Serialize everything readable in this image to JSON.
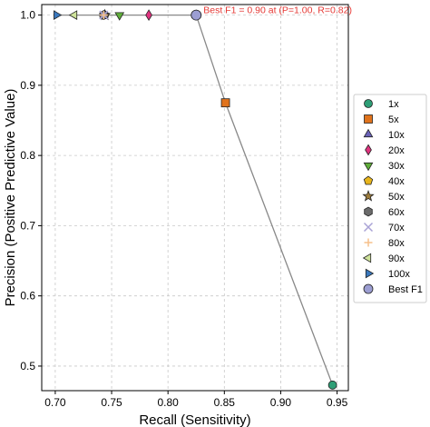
{
  "chart_data": {
    "type": "line",
    "xlabel": "Recall (Sensitivity)",
    "ylabel": "Precision (Positive Predictive Value)",
    "xlim": [
      0.688,
      0.96
    ],
    "ylim": [
      0.465,
      1.015
    ],
    "xticks": [
      0.7,
      0.75,
      0.8,
      0.85,
      0.9,
      0.95
    ],
    "yticks": [
      0.5,
      0.6,
      0.7,
      0.8,
      0.9,
      1.0
    ],
    "xtick_labels": [
      "0.70",
      "0.75",
      "0.80",
      "0.85",
      "0.90",
      "0.95"
    ],
    "ytick_labels": [
      "0.5",
      "0.6",
      "0.7",
      "0.8",
      "0.9",
      "1.0"
    ],
    "grid": true,
    "legend_position": "right",
    "curve": {
      "color": "#888888",
      "x": [
        0.701,
        0.717,
        0.743,
        0.744,
        0.757,
        0.783,
        0.825,
        0.851,
        0.946
      ],
      "y": [
        1.0,
        1.0,
        1.0,
        1.0,
        1.0,
        1.0,
        1.0,
        0.875,
        0.473
      ]
    },
    "series": [
      {
        "name": "1x",
        "marker": "circle",
        "color": "#2e9e76",
        "x": 0.946,
        "y": 0.473
      },
      {
        "name": "5x",
        "marker": "square",
        "color": "#e0731c",
        "x": 0.851,
        "y": 0.875
      },
      {
        "name": "10x",
        "marker": "triangle-up",
        "color": "#6a62b8",
        "x": 0.825,
        "y": 1.0
      },
      {
        "name": "20x",
        "marker": "diamond",
        "color": "#e0337f",
        "x": 0.783,
        "y": 1.0
      },
      {
        "name": "30x",
        "marker": "triangle-down",
        "color": "#5fae3a",
        "x": 0.757,
        "y": 1.0
      },
      {
        "name": "40x",
        "marker": "pentagon",
        "color": "#e8b51d",
        "x": 0.744,
        "y": 1.0
      },
      {
        "name": "50x",
        "marker": "star",
        "color": "#9c7b3b",
        "x": 0.744,
        "y": 1.0
      },
      {
        "name": "60x",
        "marker": "hexagon",
        "color": "#6b6b6b",
        "x": 0.743,
        "y": 1.0
      },
      {
        "name": "70x",
        "marker": "x",
        "color": "#a9a3d6",
        "x": 0.743,
        "y": 1.0
      },
      {
        "name": "80x",
        "marker": "plus",
        "color": "#f6c08a",
        "x": 0.743,
        "y": 1.0
      },
      {
        "name": "90x",
        "marker": "triangle-left",
        "color": "#cfe39b",
        "x": 0.717,
        "y": 1.0
      },
      {
        "name": "100x",
        "marker": "triangle-right",
        "color": "#3a78bd",
        "x": 0.701,
        "y": 1.0
      },
      {
        "name": "Best F1",
        "marker": "circle",
        "color": "#9c9ed2",
        "x": 0.825,
        "y": 1.0
      }
    ],
    "annotation": {
      "text": "Best F1 = 0.90 at (P=1.00, R=0.82)",
      "color": "#e53935"
    }
  }
}
